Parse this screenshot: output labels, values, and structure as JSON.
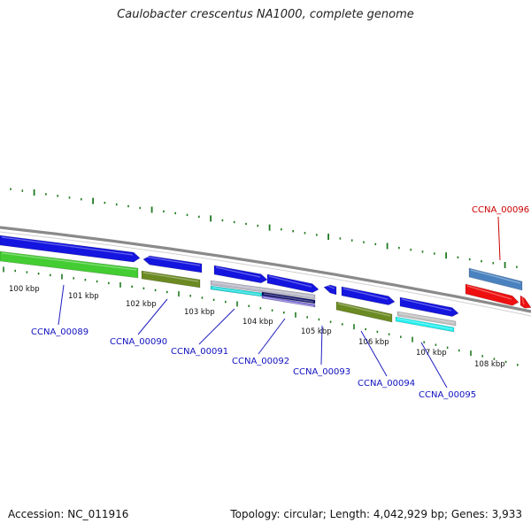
{
  "title": "Caulobacter crescentus NA1000, complete genome",
  "footer": {
    "accession": "Accession: NC_011916",
    "topology": "Topology: circular; Length: 4,042,929 bp; Genes: 3,933"
  },
  "colors": {
    "backbone": "#8a8a8a",
    "tick": "#1f7a1f",
    "label_blue": "#1010c0",
    "label_red": "#cc0000",
    "leader": "#2020c0"
  },
  "kbp_labels": [
    "100 kbp",
    "101 kbp",
    "102 kbp",
    "103 kbp",
    "104 kbp",
    "105 kbp",
    "106 kbp",
    "107 kbp",
    "108 kbp"
  ],
  "genes": [
    {
      "label": "CCNA_00089",
      "color": "#1010c0"
    },
    {
      "label": "CCNA_00090",
      "color": "#1010c0"
    },
    {
      "label": "CCNA_00091",
      "color": "#1010c0"
    },
    {
      "label": "CCNA_00092",
      "color": "#1010c0"
    },
    {
      "label": "CCNA_00093",
      "color": "#1010c0"
    },
    {
      "label": "CCNA_00094",
      "color": "#1010c0"
    },
    {
      "label": "CCNA_00095",
      "color": "#1010c0"
    },
    {
      "label": "CCNA_00096",
      "color": "#cc0000"
    }
  ],
  "features": [
    {
      "name": "feature-blue-1",
      "color": "#1515e0"
    },
    {
      "name": "feature-green-1",
      "color": "#44cc33"
    },
    {
      "name": "feature-blue-2",
      "color": "#1515e0"
    },
    {
      "name": "feature-olive-1",
      "color": "#6b8a22"
    },
    {
      "name": "feature-blue-3",
      "color": "#1515e0"
    },
    {
      "name": "feature-grey-1",
      "color": "#b8b8c8"
    },
    {
      "name": "feature-cyan-1",
      "color": "#22dddd"
    },
    {
      "name": "feature-blue-4",
      "color": "#1515e0"
    },
    {
      "name": "feature-navy-1",
      "color": "#10106a"
    },
    {
      "name": "feature-purple-1",
      "color": "#7a6ad8"
    },
    {
      "name": "feature-blue-5",
      "color": "#1515e0"
    },
    {
      "name": "feature-blue-6",
      "color": "#1515e0"
    },
    {
      "name": "feature-olive-2",
      "color": "#6b8a22"
    },
    {
      "name": "feature-blue-7",
      "color": "#1515e0"
    },
    {
      "name": "feature-grey-2",
      "color": "#c0c0c0"
    },
    {
      "name": "feature-cyan-2",
      "color": "#22eeee"
    },
    {
      "name": "feature-steelblue-1",
      "color": "#4a82c0"
    },
    {
      "name": "feature-red-1",
      "color": "#ee1010"
    },
    {
      "name": "feature-red-2",
      "color": "#ee1010"
    }
  ]
}
